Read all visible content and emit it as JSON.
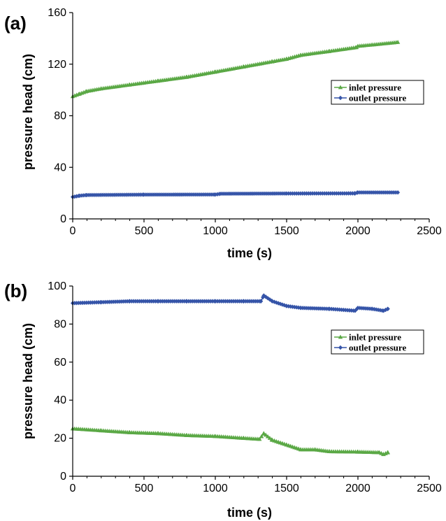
{
  "colors": {
    "inlet": "#5aa845",
    "outlet": "#3554a8",
    "axis": "#000000",
    "legend_border": "#000000"
  },
  "chart_data": [
    {
      "type": "line",
      "panel_label": "(a)",
      "xlabel": "time (s)",
      "ylabel": "pressure head (cm)",
      "xlim": [
        0,
        2500
      ],
      "ylim": [
        0,
        160
      ],
      "xticks": [
        0,
        500,
        1000,
        1500,
        2000,
        2500
      ],
      "yticks": [
        0,
        40,
        80,
        120,
        160
      ],
      "grid": false,
      "legend_position": "right",
      "series": [
        {
          "name": "inlet pressure",
          "color_key": "inlet",
          "marker": "triangle",
          "points": [
            [
              0,
              95
            ],
            [
              50,
              97
            ],
            [
              100,
              99
            ],
            [
              200,
              101
            ],
            [
              400,
              104
            ],
            [
              600,
              107
            ],
            [
              800,
              110
            ],
            [
              1000,
              114
            ],
            [
              1200,
              118
            ],
            [
              1400,
              122
            ],
            [
              1500,
              124
            ],
            [
              1600,
              127
            ],
            [
              1800,
              130
            ],
            [
              1990,
              133
            ],
            [
              2000,
              134
            ],
            [
              2100,
              135
            ],
            [
              2280,
              137
            ]
          ]
        },
        {
          "name": "outlet pressure",
          "color_key": "outlet",
          "marker": "diamond",
          "points": [
            [
              0,
              17
            ],
            [
              50,
              18
            ],
            [
              100,
              18.5
            ],
            [
              500,
              18.8
            ],
            [
              1000,
              18.9
            ],
            [
              1040,
              19.5
            ],
            [
              1500,
              19.7
            ],
            [
              1980,
              19.8
            ],
            [
              2000,
              20.5
            ],
            [
              2280,
              20.5
            ]
          ]
        }
      ]
    },
    {
      "type": "line",
      "panel_label": "(b)",
      "xlabel": "time (s)",
      "ylabel": "pressure head (cm)",
      "xlim": [
        0,
        2500
      ],
      "ylim": [
        0,
        100
      ],
      "xticks": [
        0,
        500,
        1000,
        1500,
        2000,
        2500
      ],
      "yticks": [
        0,
        20,
        40,
        60,
        80,
        100
      ],
      "grid": false,
      "legend_position": "right",
      "series": [
        {
          "name": "inlet pressure",
          "color_key": "inlet",
          "marker": "triangle",
          "points": [
            [
              0,
              25
            ],
            [
              200,
              24
            ],
            [
              400,
              23
            ],
            [
              600,
              22.5
            ],
            [
              800,
              21.5
            ],
            [
              1000,
              21
            ],
            [
              1200,
              20
            ],
            [
              1310,
              19.5
            ],
            [
              1340,
              22.5
            ],
            [
              1400,
              19
            ],
            [
              1500,
              16.5
            ],
            [
              1600,
              14
            ],
            [
              1700,
              14
            ],
            [
              1800,
              13
            ],
            [
              2000,
              12.8
            ],
            [
              2150,
              12.5
            ],
            [
              2180,
              11.5
            ],
            [
              2210,
              12.5
            ]
          ]
        },
        {
          "name": "outlet pressure",
          "color_key": "outlet",
          "marker": "diamond",
          "points": [
            [
              0,
              91
            ],
            [
              200,
              91.5
            ],
            [
              400,
              92
            ],
            [
              600,
              92
            ],
            [
              800,
              92
            ],
            [
              1000,
              92
            ],
            [
              1200,
              92
            ],
            [
              1320,
              92
            ],
            [
              1340,
              95
            ],
            [
              1400,
              92
            ],
            [
              1500,
              89.5
            ],
            [
              1600,
              88.5
            ],
            [
              1800,
              88
            ],
            [
              1980,
              87
            ],
            [
              2000,
              88.5
            ],
            [
              2100,
              88
            ],
            [
              2180,
              87
            ],
            [
              2210,
              88
            ]
          ]
        }
      ]
    }
  ]
}
